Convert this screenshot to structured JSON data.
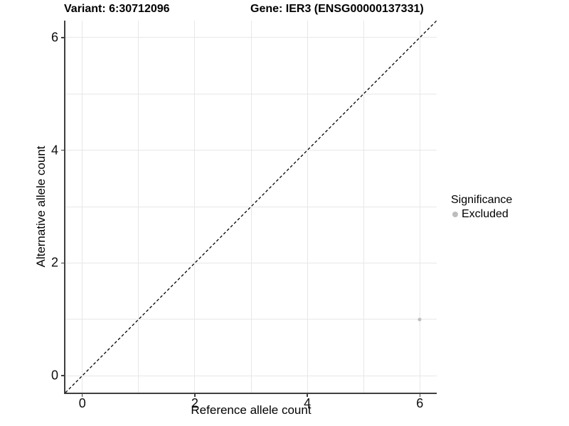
{
  "title": {
    "variant": "Variant: 6:30712096",
    "gene": "Gene: IER3 (ENSG00000137331)"
  },
  "chart_data": {
    "type": "scatter",
    "title_left": "Variant: 6:30712096",
    "title_right": "Gene: IER3 (ENSG00000137331)",
    "xlabel": "Reference allele count",
    "ylabel": "Alternative allele count",
    "xlim": [
      -0.3,
      6.3
    ],
    "ylim": [
      -0.3,
      6.3
    ],
    "x_ticks": [
      0,
      2,
      4,
      6
    ],
    "y_ticks": [
      0,
      2,
      4,
      6
    ],
    "grid_x": [
      0,
      1,
      2,
      3,
      4,
      5,
      6
    ],
    "grid_y": [
      0,
      1,
      2,
      3,
      4,
      5,
      6
    ],
    "grid_on": true,
    "points": [
      {
        "x": 6,
        "y": 1,
        "significance": "Excluded",
        "color": "#bebebe",
        "size": 5
      }
    ],
    "identity_line": {
      "from": [
        -0.3,
        -0.3
      ],
      "to": [
        6.3,
        6.3
      ],
      "style": "dashed",
      "color": "#000000"
    },
    "legend": {
      "title": "Significance",
      "position": "right",
      "items": [
        {
          "label": "Excluded",
          "color": "#bdbdbd"
        }
      ]
    },
    "colors": {
      "background": "#ffffff",
      "gridline": "#e7e7e7",
      "axis_line": "#3f3f3f",
      "text": "#000000"
    }
  }
}
